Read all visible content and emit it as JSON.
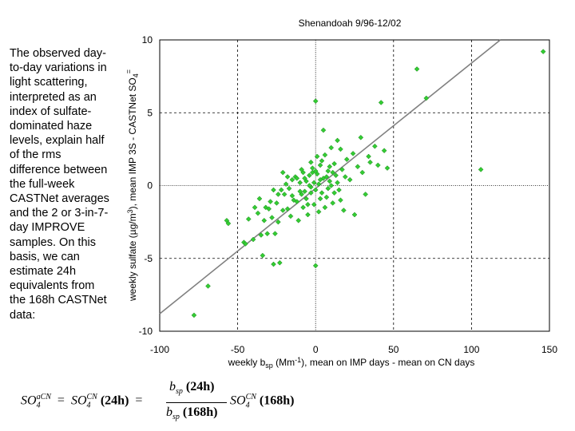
{
  "description_text": "The observed day-to-day variations in light scattering, interpreted as an index of sulfate-dominated haze levels, explain half of the rms difference between the full-week CASTNet averages and the 2 or 3-in-7-day IMPROVE samples.  On this basis, we can estimate 24h equivalents from the 168h CASTNet data:",
  "formula": {
    "lhs_base": "SO",
    "lhs_sub": "4",
    "lhs_sup": "aCN",
    "eq1": "=",
    "mid_base": "SO",
    "mid_sub": "4",
    "mid_sup": "CN",
    "mid_arg": "(24h)",
    "eq2": "=",
    "num_base": "b",
    "num_sub": "sp",
    "num_arg": "(24h)",
    "den_base": "b",
    "den_sub": "sp",
    "den_arg": "(168h)",
    "rhs_base": "SO",
    "rhs_sub": "4",
    "rhs_sup": "CN",
    "rhs_arg": "(168h)"
  },
  "chart_data": {
    "type": "scatter",
    "title": "Shenandoah 9/96-12/02",
    "xlabel": "weekly b",
    "xlabel_sub": "sp",
    "xlabel_rest": " (Mm",
    "xlabel_sup": "-1",
    "xlabel_end": "),  mean on IMP days  - mean on CN days",
    "ylabel": "weekly sulfate (µg/m",
    "ylabel_sup": "3",
    "ylabel_rest": "),  mean IMP 3S - CASTNet SO",
    "ylabel_sub": "4",
    "ylabel_sup2": "=",
    "xlim": [
      -100,
      150
    ],
    "ylim": [
      -10,
      10
    ],
    "xticks": [
      "-100",
      "-50",
      "0",
      "50",
      "100",
      "150"
    ],
    "yticks": [
      "-10",
      "-5",
      "0",
      "5",
      "10"
    ],
    "grid": "dashed",
    "marker_color": "#33cc33",
    "marker_edge": "#1a801a",
    "line_color": "#808080",
    "fit_line": {
      "x": [
        -100,
        118.5
      ],
      "y": [
        -8.8,
        10
      ]
    },
    "points": [
      [
        -78,
        -8.9
      ],
      [
        -69,
        -6.9
      ],
      [
        -57,
        -2.4
      ],
      [
        -56,
        -2.6
      ],
      [
        -46,
        -3.9
      ],
      [
        -45,
        -4.0
      ],
      [
        -43,
        -2.3
      ],
      [
        -40,
        -3.7
      ],
      [
        -37,
        -1.9
      ],
      [
        -35,
        -3.4
      ],
      [
        -34,
        -4.8
      ],
      [
        -33,
        -2.4
      ],
      [
        -32,
        -1.5
      ],
      [
        -31,
        -3.3
      ],
      [
        -30,
        -1.6
      ],
      [
        -29,
        -1.1
      ],
      [
        -28,
        -2.2
      ],
      [
        -27,
        -5.4
      ],
      [
        -26,
        -3.3
      ],
      [
        -25,
        -1.2
      ],
      [
        -24,
        -2.5
      ],
      [
        -23,
        -5.3
      ],
      [
        -22,
        -0.3
      ],
      [
        -21,
        -1.7
      ],
      [
        -20,
        -0.6
      ],
      [
        -19,
        0.1
      ],
      [
        -18,
        -1.6
      ],
      [
        -17,
        -0.2
      ],
      [
        -16,
        -2.1
      ],
      [
        -15,
        0.4
      ],
      [
        -14,
        -1.0
      ],
      [
        -13,
        0.6
      ],
      [
        -12,
        -1.1
      ],
      [
        -11,
        -2.4
      ],
      [
        -10,
        0.2
      ],
      [
        -9,
        -0.6
      ],
      [
        -8,
        0.9
      ],
      [
        -7,
        -0.4
      ],
      [
        -6,
        0.3
      ],
      [
        -5,
        -1.3
      ],
      [
        -4,
        0.7
      ],
      [
        -3,
        -0.1
      ],
      [
        -2,
        1.2
      ],
      [
        -1,
        0.2
      ],
      [
        0,
        -0.3
      ],
      [
        1,
        0.8
      ],
      [
        2,
        0.1
      ],
      [
        3,
        1.4
      ],
      [
        4,
        -0.5
      ],
      [
        5,
        0.5
      ],
      [
        6,
        2.1
      ],
      [
        7,
        -0.8
      ],
      [
        8,
        1.0
      ],
      [
        9,
        0.3
      ],
      [
        10,
        2.6
      ],
      [
        11,
        -1.2
      ],
      [
        12,
        1.5
      ],
      [
        13,
        0.7
      ],
      [
        14,
        3.1
      ],
      [
        15,
        -0.3
      ],
      [
        16,
        2.5
      ],
      [
        17,
        1.1
      ],
      [
        18,
        -1.7
      ],
      [
        20,
        1.8
      ],
      [
        22,
        0.4
      ],
      [
        24,
        2.2
      ],
      [
        25,
        -2.0
      ],
      [
        27,
        1.3
      ],
      [
        29,
        3.3
      ],
      [
        30,
        0.9
      ],
      [
        32,
        -0.6
      ],
      [
        34,
        2.0
      ],
      [
        35,
        1.6
      ],
      [
        38,
        2.7
      ],
      [
        40,
        1.4
      ],
      [
        42,
        5.7
      ],
      [
        44,
        2.4
      ],
      [
        46,
        1.2
      ],
      [
        65,
        8.0
      ],
      [
        71,
        6.0
      ],
      [
        106,
        1.1
      ],
      [
        146,
        9.2
      ],
      [
        0,
        5.8
      ],
      [
        0,
        -5.5
      ],
      [
        -5,
        -2.0
      ],
      [
        -8,
        -1.5
      ],
      [
        3,
        -0.9
      ],
      [
        -2,
        0.9
      ],
      [
        1,
        2.0
      ],
      [
        -3,
        1.6
      ],
      [
        4,
        1.7
      ],
      [
        6,
        -1.5
      ],
      [
        8,
        -0.2
      ],
      [
        -9,
        1.1
      ],
      [
        -12,
        0.5
      ],
      [
        -15,
        -0.7
      ],
      [
        10,
        0.0
      ],
      [
        12,
        -0.5
      ],
      [
        -1,
        -1.3
      ],
      [
        2,
        -1.8
      ],
      [
        5,
        3.8
      ],
      [
        -6,
        -0.9
      ],
      [
        7,
        0.6
      ],
      [
        -4,
        0.0
      ],
      [
        -7,
        0.5
      ],
      [
        9,
        1.3
      ],
      [
        -10,
        -0.4
      ],
      [
        11,
        0.9
      ],
      [
        -18,
        0.6
      ],
      [
        14,
        0.2
      ],
      [
        -21,
        0.9
      ],
      [
        -24,
        -0.6
      ],
      [
        16,
        -1.0
      ],
      [
        19,
        0.6
      ],
      [
        -27,
        -0.3
      ],
      [
        -36,
        -0.9
      ],
      [
        -39,
        -1.5
      ],
      [
        3,
        0.4
      ],
      [
        -3,
        -0.5
      ],
      [
        0,
        1.0
      ]
    ]
  }
}
